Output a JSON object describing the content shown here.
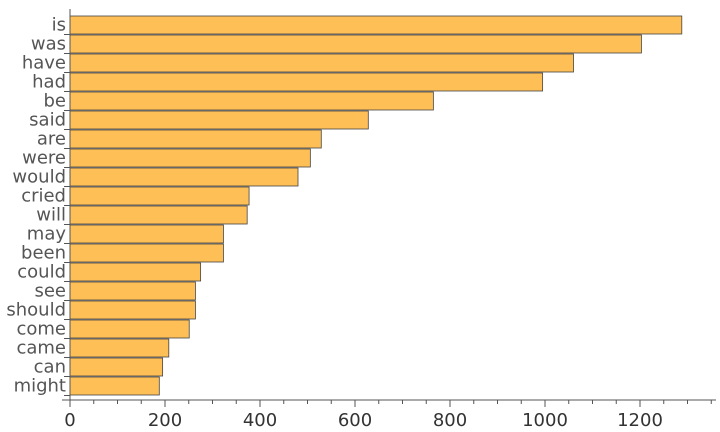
{
  "chart_data": {
    "type": "bar",
    "orientation": "horizontal",
    "title": "",
    "xlabel": "",
    "ylabel": "",
    "categories": [
      "is",
      "was",
      "have",
      "had",
      "be",
      "said",
      "are",
      "were",
      "would",
      "cried",
      "will",
      "may",
      "been",
      "could",
      "see",
      "should",
      "come",
      "came",
      "can",
      "might"
    ],
    "values": [
      1288,
      1203,
      1060,
      995,
      765,
      628,
      529,
      506,
      480,
      377,
      373,
      323,
      323,
      275,
      264,
      264,
      251,
      208,
      195,
      188
    ],
    "xlim": [
      0,
      1350
    ],
    "xticks": [
      0,
      200,
      400,
      600,
      800,
      1000,
      1200
    ],
    "xtick_labels": [
      "0",
      "200",
      "400",
      "600",
      "800",
      "1000",
      "1200"
    ],
    "grid": false,
    "legend": "none",
    "bar_color": "#fdbf56",
    "edge_color": "#444444"
  }
}
